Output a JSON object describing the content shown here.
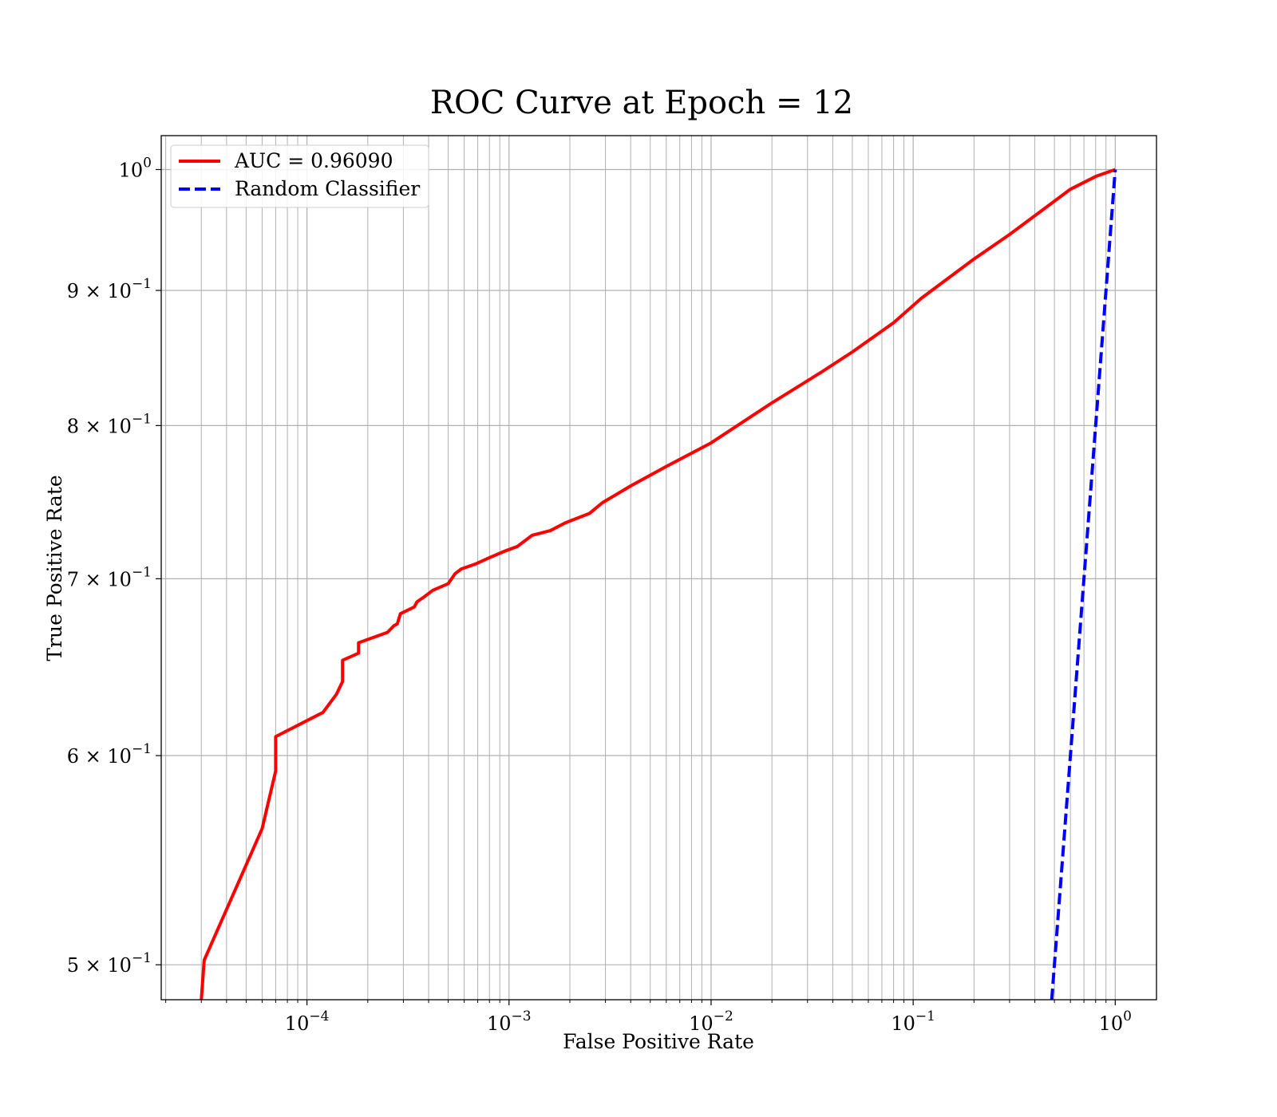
{
  "chart_data": {
    "type": "line",
    "title": "ROC Curve at Epoch = 12",
    "xlabel": "False Positive Rate",
    "ylabel": "True Positive Rate",
    "xscale": "log",
    "yscale": "log",
    "xlim": [
      1.9e-05,
      1.6
    ],
    "ylim": [
      0.485,
      1.03
    ],
    "grid": "on (major and minor)",
    "legend_position": "top-left",
    "x_ticks": [
      {
        "value": 0.0001,
        "base": "10",
        "exp": "−4"
      },
      {
        "value": 0.001,
        "base": "10",
        "exp": "−3"
      },
      {
        "value": 0.01,
        "base": "10",
        "exp": "−2"
      },
      {
        "value": 0.1,
        "base": "10",
        "exp": "−1"
      },
      {
        "value": 1,
        "base": "10",
        "exp": "0"
      }
    ],
    "y_ticks": [
      {
        "value": 0.5,
        "base": "5 × 10",
        "exp": "−1"
      },
      {
        "value": 0.6,
        "base": "6 × 10",
        "exp": "−1"
      },
      {
        "value": 0.7,
        "base": "7 × 10",
        "exp": "−1"
      },
      {
        "value": 0.8,
        "base": "8 × 10",
        "exp": "−1"
      },
      {
        "value": 0.9,
        "base": "9 × 10",
        "exp": "−1"
      },
      {
        "value": 1,
        "base": "10",
        "exp": "0"
      }
    ],
    "series": [
      {
        "name": "AUC = 0.96090",
        "color": "#ff0000",
        "style": "solid",
        "x": [
          3e-05,
          3.1e-05,
          6e-05,
          7e-05,
          7e-05,
          0.00012,
          0.00014,
          0.00015,
          0.00015,
          0.00018,
          0.00018,
          0.00025,
          0.00027,
          0.00028,
          0.00029,
          0.00034,
          0.00035,
          0.00038,
          0.00042,
          0.0005,
          0.00054,
          0.00058,
          0.00068,
          0.0008,
          0.00095,
          0.0011,
          0.0013,
          0.0016,
          0.0019,
          0.0025,
          0.0029,
          0.004,
          0.006,
          0.01,
          0.02,
          0.035,
          0.05,
          0.08,
          0.11,
          0.2,
          0.3,
          0.45,
          0.6,
          0.8,
          1.0
        ],
        "y": [
          0.485,
          0.502,
          0.563,
          0.592,
          0.61,
          0.623,
          0.633,
          0.64,
          0.652,
          0.656,
          0.662,
          0.668,
          0.672,
          0.673,
          0.679,
          0.683,
          0.686,
          0.689,
          0.693,
          0.697,
          0.703,
          0.706,
          0.709,
          0.713,
          0.717,
          0.72,
          0.727,
          0.73,
          0.735,
          0.741,
          0.748,
          0.759,
          0.772,
          0.788,
          0.816,
          0.838,
          0.853,
          0.875,
          0.894,
          0.925,
          0.945,
          0.967,
          0.983,
          0.994,
          1.0
        ]
      },
      {
        "name": "Random Classifier",
        "color": "#0000ff",
        "style": "dashed",
        "x": [
          0.485,
          1.0
        ],
        "y": [
          0.485,
          1.0
        ]
      }
    ]
  }
}
